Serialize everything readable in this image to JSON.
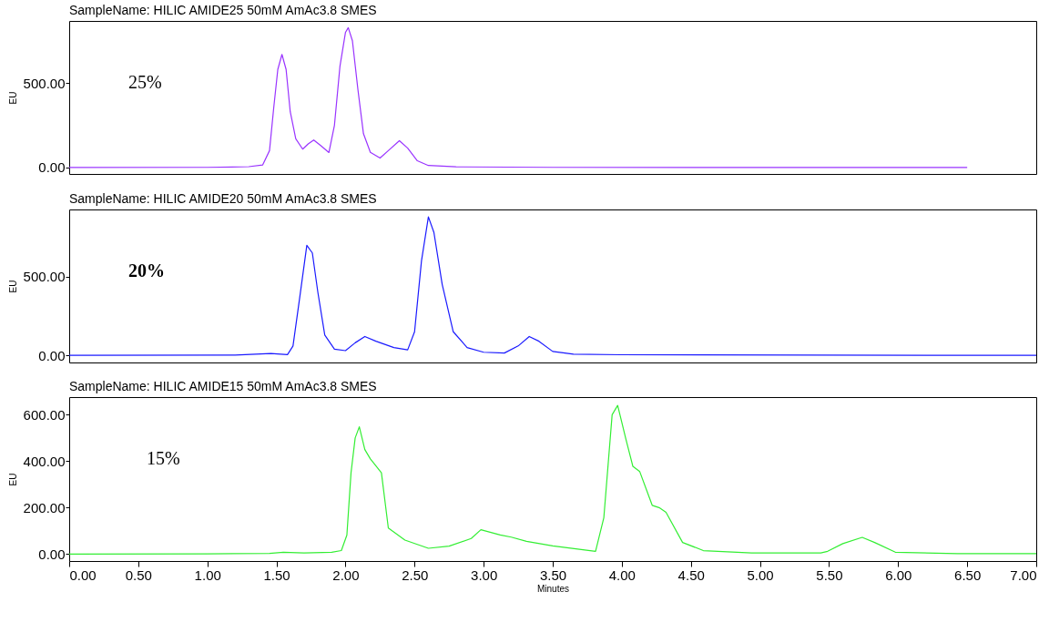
{
  "chart_data": [
    {
      "type": "line",
      "title": "SampleName: HILIC AMIDE25 50mM AmAc3.8 SMES",
      "ylabel": "EU",
      "annotations": [
        "25%"
      ],
      "xlim": [
        0,
        7
      ],
      "ylim": [
        -38,
        867
      ],
      "yticks": [
        {
          "value": 0,
          "label": "0.00"
        },
        {
          "value": 500,
          "label": "500.00"
        }
      ],
      "tick_labels": "y",
      "series": [
        {
          "color": "#9933ff",
          "x": [
            0,
            1.0,
            1.3,
            1.4,
            1.45,
            1.48,
            1.51,
            1.54,
            1.57,
            1.6,
            1.64,
            1.69,
            1.73,
            1.77,
            1.82,
            1.88,
            1.92,
            1.96,
            2.0,
            2.02,
            2.05,
            2.09,
            2.13,
            2.18,
            2.25,
            2.31,
            2.39,
            2.45,
            2.52,
            2.6,
            2.8,
            3.5,
            6.5
          ],
          "values": [
            0,
            1,
            5,
            15,
            100,
            350,
            580,
            669,
            580,
            330,
            170,
            109,
            140,
            163,
            130,
            89,
            250,
            600,
            800,
            827,
            750,
            460,
            200,
            90,
            56,
            100,
            159,
            115,
            40,
            12,
            4,
            1,
            0
          ]
        }
      ]
    },
    {
      "type": "line",
      "title": "SampleName: HILIC AMIDE20 50mM AmAc3.8 SMES",
      "ylabel": "EU",
      "annotations": [
        "20%"
      ],
      "xlim": [
        0,
        7
      ],
      "ylim": [
        -45,
        926
      ],
      "yticks": [
        {
          "value": 0,
          "label": "0.00"
        },
        {
          "value": 500,
          "label": "500.00"
        }
      ],
      "tick_labels": "y",
      "series": [
        {
          "color": "#1a1aff",
          "x": [
            0,
            1.2,
            1.46,
            1.58,
            1.62,
            1.67,
            1.72,
            1.76,
            1.8,
            1.85,
            1.92,
            2.0,
            2.07,
            2.14,
            2.22,
            2.35,
            2.45,
            2.5,
            2.55,
            2.6,
            2.64,
            2.7,
            2.78,
            2.88,
            3.0,
            3.15,
            3.25,
            3.33,
            3.4,
            3.5,
            3.65,
            4.0,
            7.0
          ],
          "values": [
            0,
            2,
            12,
            5,
            60,
            376,
            698,
            650,
            400,
            129,
            40,
            30,
            80,
            120,
            90,
            50,
            35,
            150,
            600,
            879,
            780,
            450,
            150,
            50,
            20,
            15,
            60,
            120,
            90,
            25,
            8,
            4,
            0
          ]
        }
      ]
    },
    {
      "type": "line",
      "title": "SampleName: HILIC AMIDE15 50mM AmAc3.8 SMES",
      "ylabel": "EU",
      "xlabel": "Minutes",
      "annotations": [
        "15%"
      ],
      "xlim": [
        0,
        7
      ],
      "ylim": [
        -30,
        676
      ],
      "yticks": [
        {
          "value": 0,
          "label": "0.00"
        },
        {
          "value": 200,
          "label": "200.00"
        },
        {
          "value": 400,
          "label": "400.00"
        },
        {
          "value": 600,
          "label": "600.00"
        }
      ],
      "xticks": [
        {
          "value": 0,
          "label": "0.00"
        },
        {
          "value": 0.5,
          "label": "0.50"
        },
        {
          "value": 1,
          "label": "1.00"
        },
        {
          "value": 1.5,
          "label": "1.50"
        },
        {
          "value": 2,
          "label": "2.00"
        },
        {
          "value": 2.5,
          "label": "2.50"
        },
        {
          "value": 3,
          "label": "3.00"
        },
        {
          "value": 3.5,
          "label": "3.50"
        },
        {
          "value": 4,
          "label": "4.00"
        },
        {
          "value": 4.5,
          "label": "4.50"
        },
        {
          "value": 5,
          "label": "5.00"
        },
        {
          "value": 5.5,
          "label": "5.50"
        },
        {
          "value": 6,
          "label": "6.00"
        },
        {
          "value": 6.5,
          "label": "6.50"
        },
        {
          "value": 7,
          "label": "7.00"
        }
      ],
      "series": [
        {
          "color": "#33ee33",
          "x": [
            0,
            1.0,
            1.45,
            1.55,
            1.7,
            1.9,
            1.97,
            2.01,
            2.04,
            2.07,
            2.1,
            2.14,
            2.18,
            2.26,
            2.31,
            2.43,
            2.6,
            2.75,
            2.91,
            2.98,
            3.12,
            3.2,
            3.31,
            3.5,
            3.81,
            3.87,
            3.93,
            3.97,
            4.03,
            4.08,
            4.13,
            4.22,
            4.27,
            4.32,
            4.44,
            4.59,
            4.94,
            5.44,
            5.49,
            5.6,
            5.74,
            5.83,
            5.98,
            6.43,
            7.0
          ],
          "values": [
            0,
            1,
            3,
            8,
            5,
            8,
            15,
            82,
            350,
            500,
            548,
            450,
            410,
            350,
            112,
            60,
            25,
            34,
            67,
            105,
            82,
            73,
            55,
            35,
            12,
            157,
            600,
            640,
            494,
            378,
            355,
            210,
            200,
            180,
            50,
            15,
            5,
            5,
            12,
            45,
            72,
            50,
            8,
            2,
            2
          ]
        }
      ]
    }
  ]
}
